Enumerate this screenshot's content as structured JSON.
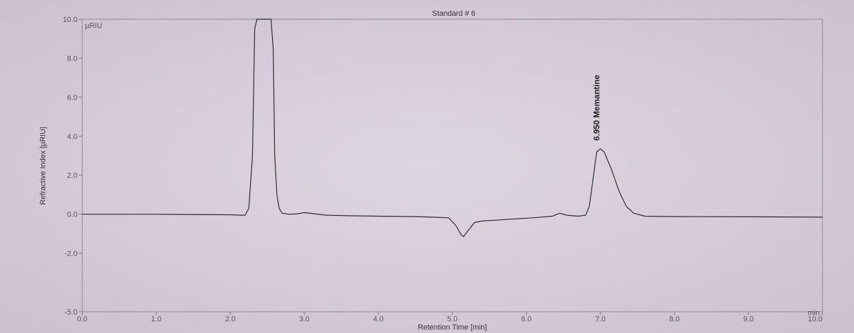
{
  "chart_data": {
    "type": "line",
    "title": "Standard # 6",
    "xlabel": "Retention Time [min]",
    "ylabel": "Refractive Index [µRIU]",
    "y_unit": "µRIU",
    "x_unit": "min",
    "xlim": [
      0.0,
      10.0
    ],
    "ylim": [
      -5.0,
      10.0
    ],
    "x_ticks": [
      "0.0",
      "1.0",
      "2.0",
      "3.0",
      "4.0",
      "5.0",
      "6.0",
      "7.0",
      "8.0",
      "9.0",
      "10.0"
    ],
    "y_ticks": [
      "10.0",
      "8.0",
      "6.0",
      "4.0",
      "2.0",
      "0.0",
      "-2.0",
      "-5.0"
    ],
    "grid": false,
    "peak_label": "6.950 Memantine",
    "peak": {
      "x": 6.95,
      "y": 3.35
    },
    "series": [
      {
        "color": "#2a2a2a",
        "x": [
          0.0,
          1.0,
          2.0,
          2.2,
          2.25,
          2.3,
          2.33,
          2.36,
          2.45,
          2.55,
          2.58,
          2.6,
          2.63,
          2.66,
          2.7,
          2.8,
          2.9,
          3.0,
          3.1,
          3.3,
          3.6,
          4.0,
          4.5,
          4.95,
          5.05,
          5.12,
          5.15,
          5.2,
          5.3,
          5.4,
          5.6,
          5.8,
          6.1,
          6.35,
          6.45,
          6.55,
          6.7,
          6.8,
          6.85,
          6.9,
          6.95,
          7.0,
          7.05,
          7.15,
          7.25,
          7.35,
          7.45,
          7.6,
          8.0,
          9.0,
          10.0
        ],
        "y": [
          0.0,
          0.0,
          -0.03,
          -0.05,
          0.3,
          3.0,
          9.5,
          10.0,
          10.0,
          10.0,
          8.5,
          3.0,
          1.0,
          0.3,
          0.05,
          0.0,
          0.02,
          0.08,
          0.04,
          -0.05,
          -0.08,
          -0.1,
          -0.12,
          -0.18,
          -0.6,
          -1.05,
          -1.15,
          -0.9,
          -0.42,
          -0.35,
          -0.3,
          -0.25,
          -0.18,
          -0.1,
          0.05,
          -0.05,
          -0.1,
          -0.05,
          0.4,
          1.8,
          3.2,
          3.35,
          3.2,
          2.3,
          1.2,
          0.4,
          0.05,
          -0.1,
          -0.12,
          -0.13,
          -0.15
        ]
      }
    ]
  }
}
